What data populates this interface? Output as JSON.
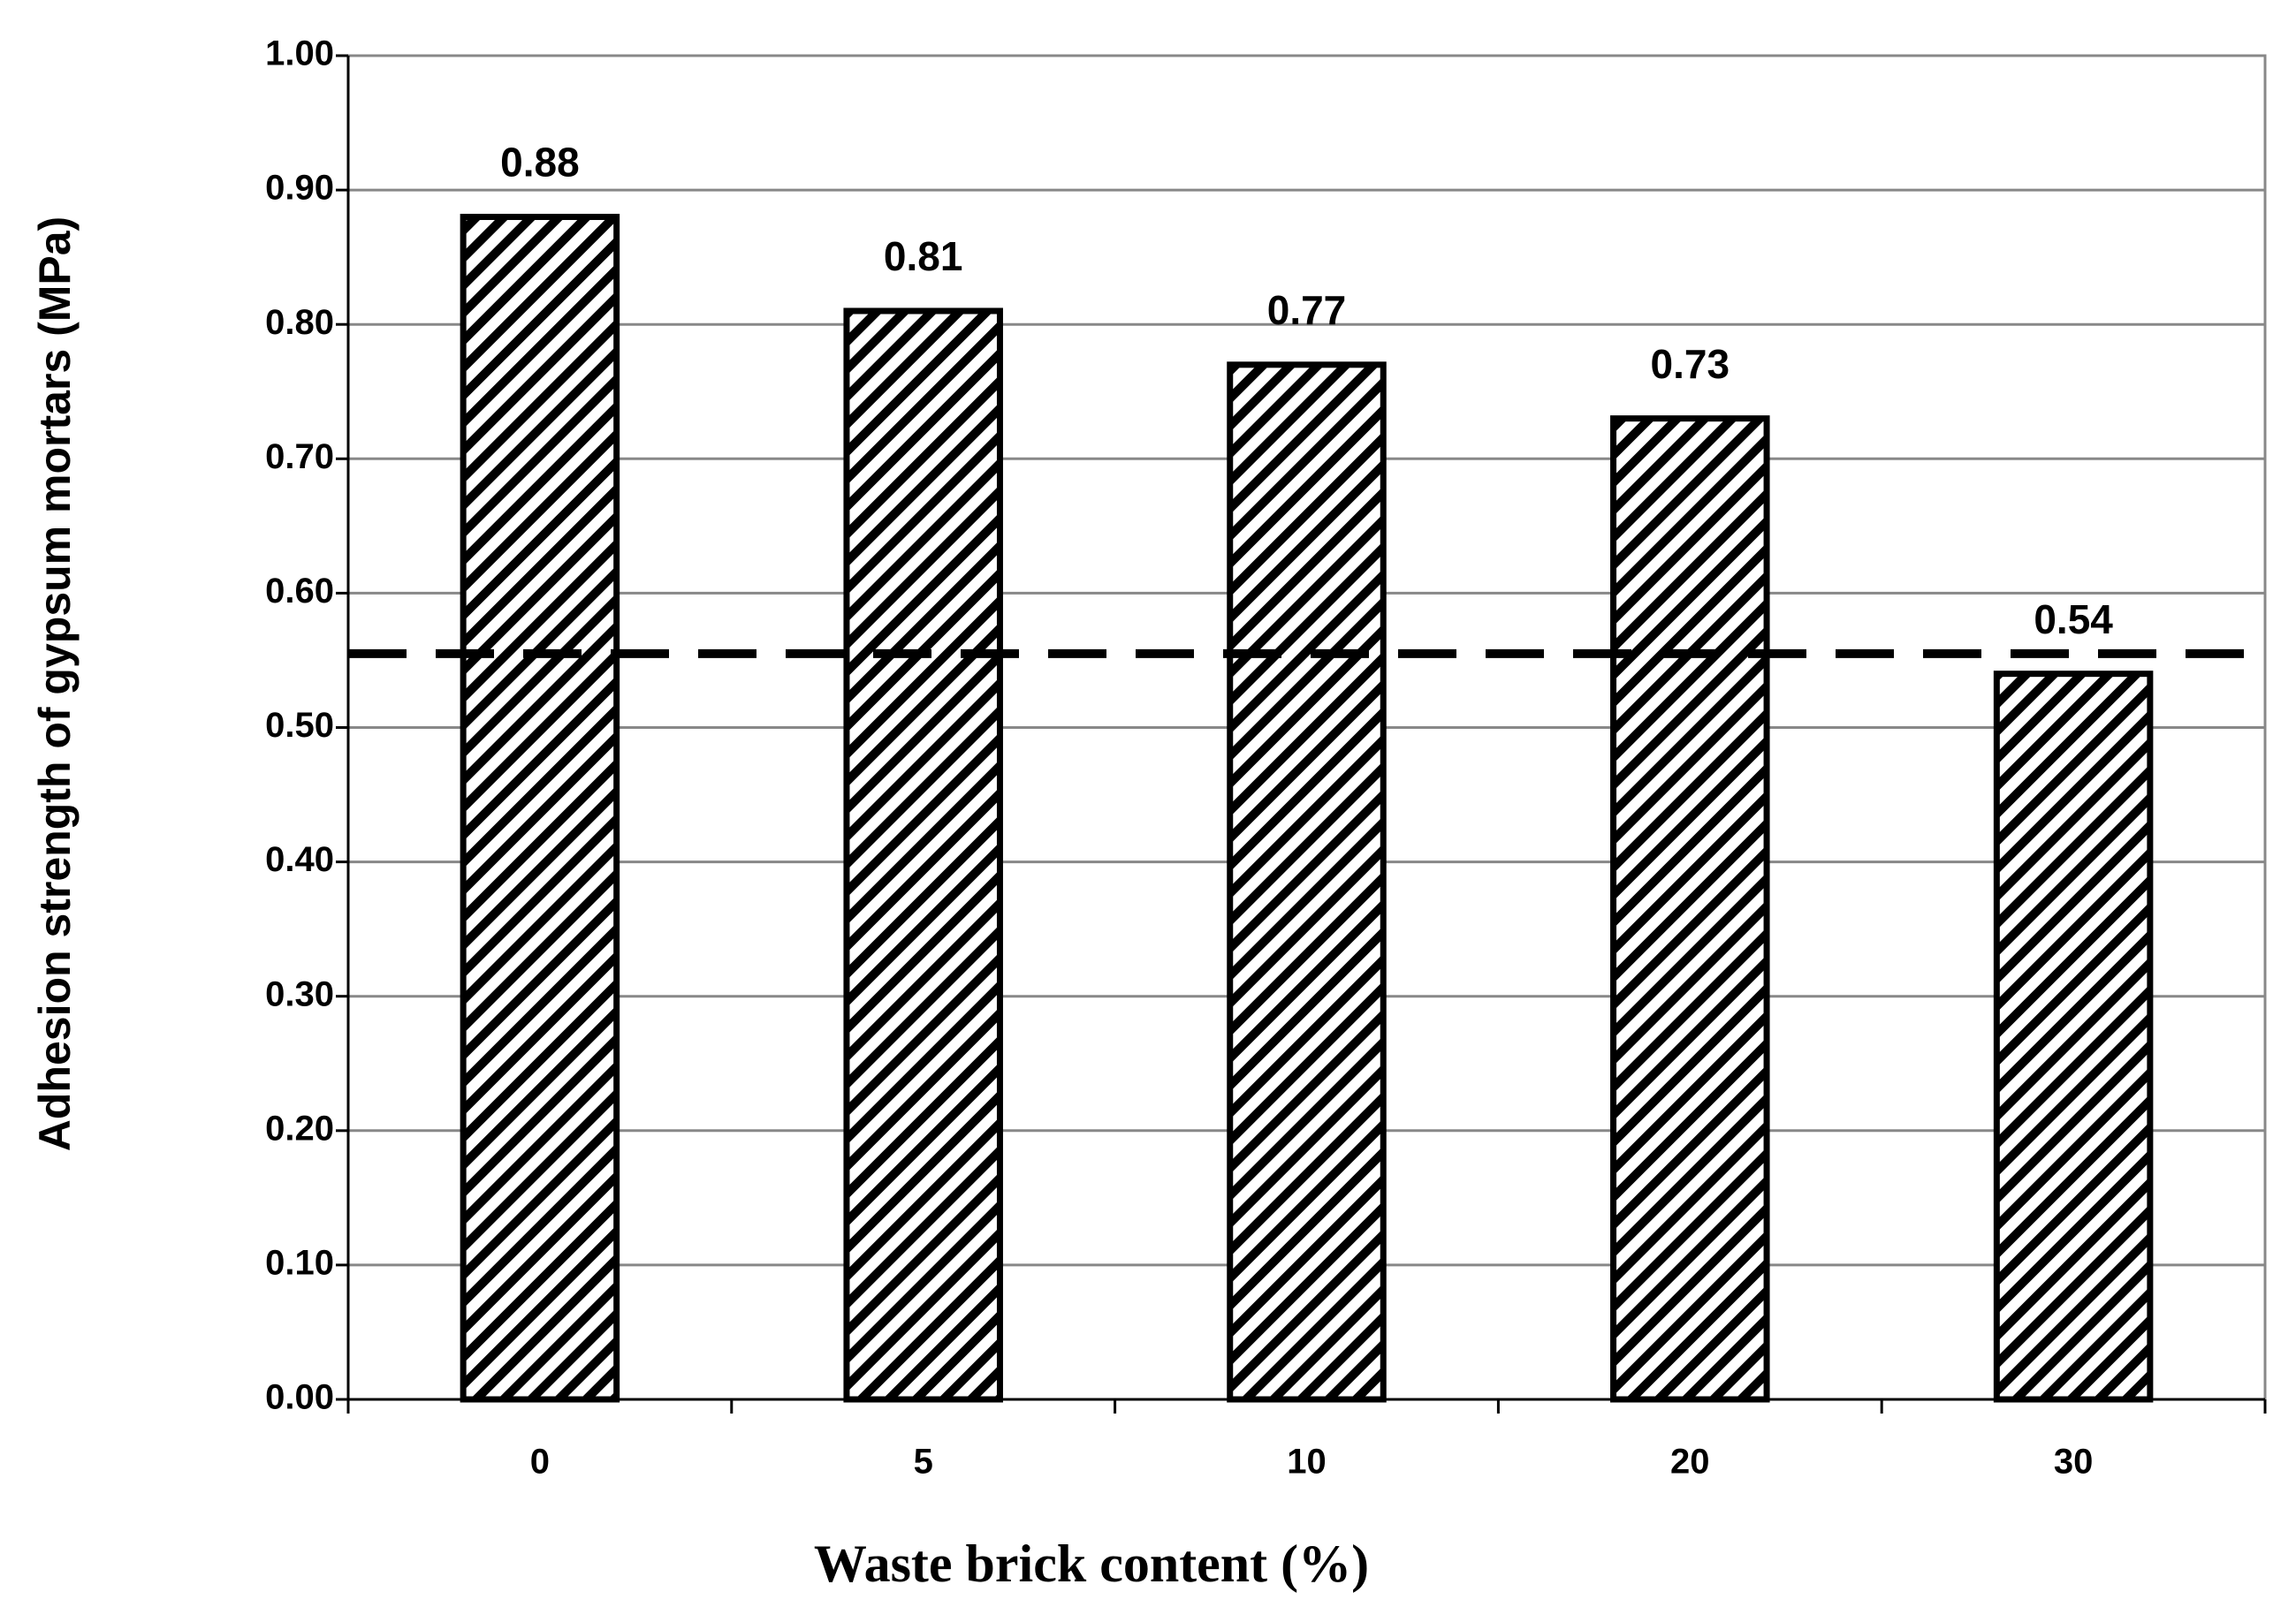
{
  "chart_data": {
    "type": "bar",
    "x_label": "Waste brick content (%)",
    "y_label": "Adhesion  strength of gypsum mortars (MPa)",
    "categories": [
      "0",
      "5",
      "10",
      "20",
      "30"
    ],
    "values": [
      0.88,
      0.81,
      0.77,
      0.73,
      0.54
    ],
    "color": "#000000",
    "ylim": [
      0,
      1
    ],
    "yticks": [
      {
        "value": 0,
        "label": "0.00"
      },
      {
        "value": 0.1,
        "label": "0.10"
      },
      {
        "value": 0.2,
        "label": "0.20"
      },
      {
        "value": 0.3,
        "label": "0.30"
      },
      {
        "value": 0.4,
        "label": "0.40"
      },
      {
        "value": 0.5,
        "label": "0.50"
      },
      {
        "value": 0.6,
        "label": "0.60"
      },
      {
        "value": 0.7,
        "label": "0.70"
      },
      {
        "value": 0.8,
        "label": "0.80"
      },
      {
        "value": 0.9,
        "label": "0.90"
      },
      {
        "value": 1,
        "label": "1.00"
      }
    ],
    "grid": true,
    "reference_line": 0.555
  }
}
